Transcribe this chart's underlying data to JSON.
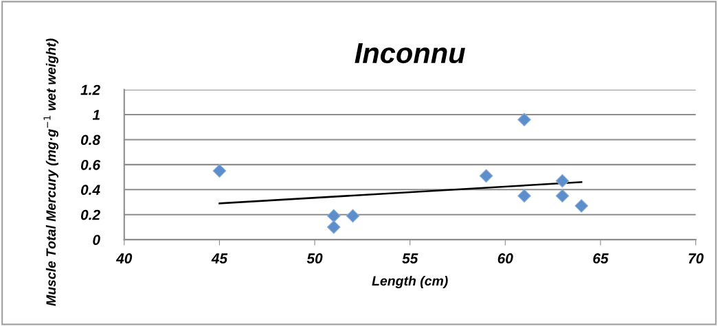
{
  "chart_data": {
    "type": "scatter",
    "title": "Inconnu",
    "xlabel": "Length (cm)",
    "ylabel": "Muscle Total Mercury (mg·g$^{−1}$ wet weight)",
    "series": [
      {
        "color": "#5b8ecb",
        "marker": "diamond",
        "x": [
          45,
          51,
          51,
          52,
          59,
          61,
          61,
          63,
          63,
          64
        ],
        "values": [
          0.55,
          0.19,
          0.1,
          0.19,
          0.51,
          0.96,
          0.35,
          0.47,
          0.35,
          0.27
        ]
      },
      {
        "type": "line",
        "color": "#000000",
        "marker": "none",
        "line_style": "solid",
        "x": [
          45,
          64
        ],
        "values": [
          0.29,
          0.46
        ]
      }
    ],
    "xlim": [
      40,
      70
    ],
    "xticks": [
      40,
      45,
      50,
      55,
      60,
      65,
      70
    ],
    "ylim": [
      0,
      1.2
    ],
    "yticks": [
      0,
      0.2,
      0.4,
      0.6,
      0.8,
      1,
      1.2
    ],
    "grid": "y",
    "legend": false
  }
}
